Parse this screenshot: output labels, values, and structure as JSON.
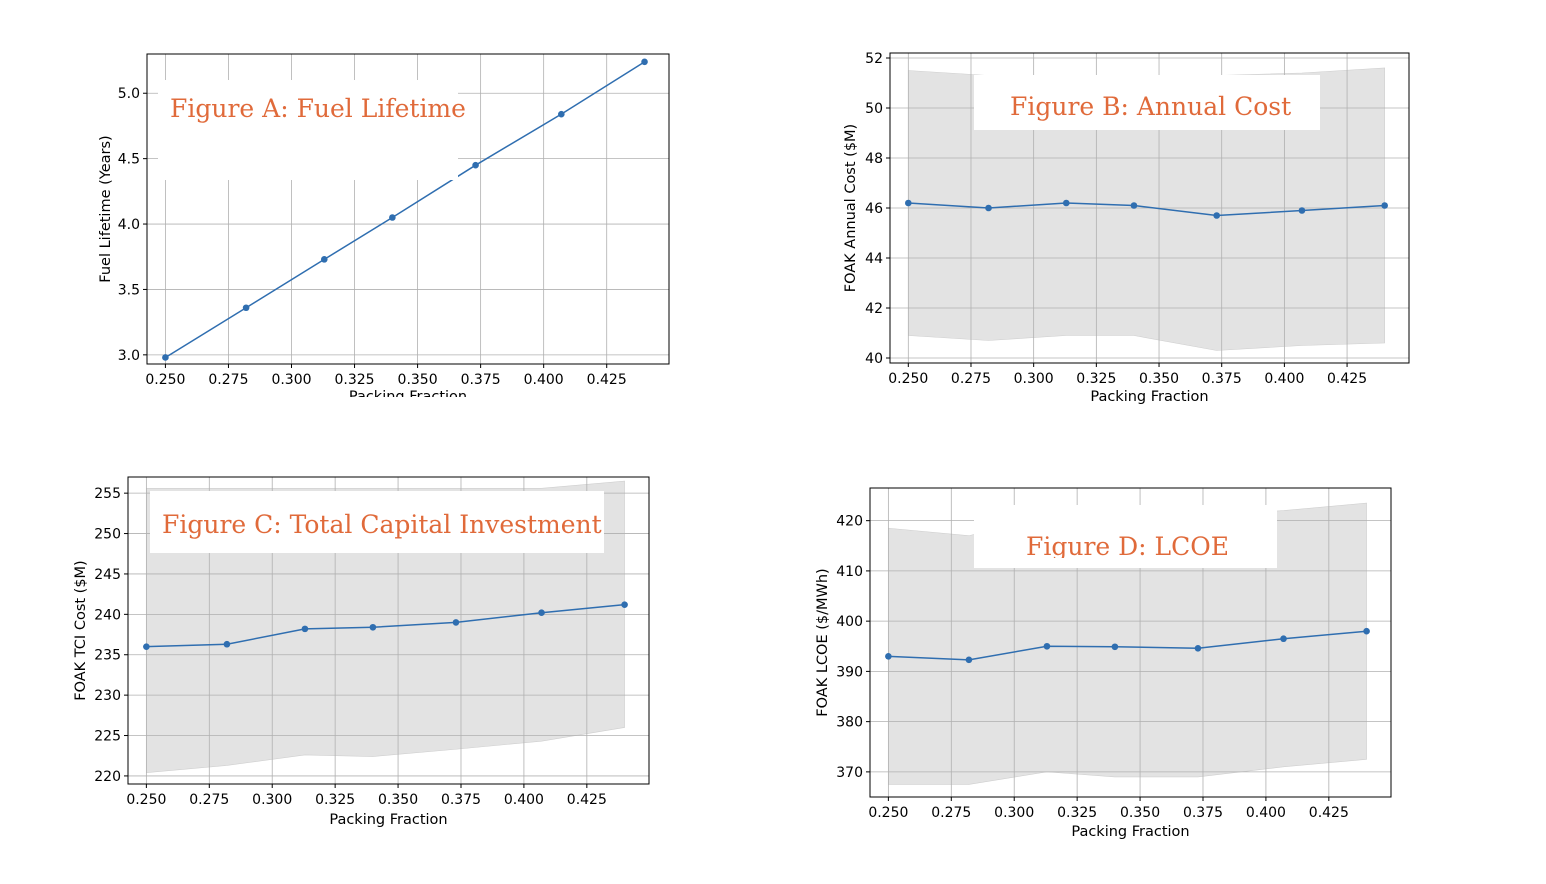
{
  "chart_data": [
    {
      "id": "A",
      "type": "line",
      "title": "Figure A: Fuel Lifetime",
      "xlabel": "Packing Fraction",
      "ylabel": "Fuel Lifetime (Years)",
      "x": [
        0.25,
        0.282,
        0.313,
        0.34,
        0.373,
        0.407,
        0.44
      ],
      "series": [
        {
          "values": [
            2.98,
            3.36,
            3.73,
            4.05,
            4.45,
            4.84,
            5.24
          ]
        }
      ],
      "xlim": [
        0.2427,
        0.4497
      ],
      "ylim": [
        2.93,
        5.3
      ],
      "xticks": [
        0.25,
        0.275,
        0.3,
        0.325,
        0.35,
        0.375,
        0.4,
        0.425
      ],
      "xtick_labels": [
        "0.250",
        "0.275",
        "0.300",
        "0.325",
        "0.350",
        "0.375",
        "0.400",
        "0.425"
      ],
      "yticks": [
        3.0,
        3.5,
        4.0,
        4.5,
        5.0
      ],
      "ytick_labels": [
        "3.0",
        "3.5",
        "4.0",
        "4.5",
        "5.0"
      ],
      "grid": true,
      "color": "#2F6EB0"
    },
    {
      "id": "B",
      "type": "line",
      "title": "Figure B: Annual Cost",
      "xlabel": "Packing Fraction",
      "ylabel": "FOAK Annual Cost ($M)",
      "x": [
        0.25,
        0.282,
        0.313,
        0.34,
        0.373,
        0.407,
        0.44
      ],
      "series": [
        {
          "values": [
            46.2,
            46.0,
            46.2,
            46.1,
            45.7,
            45.9,
            46.1
          ]
        }
      ],
      "band_upper": [
        51.5,
        51.3,
        51.3,
        51.3,
        51.3,
        51.4,
        51.6
      ],
      "band_lower": [
        40.9,
        40.7,
        40.9,
        40.9,
        40.3,
        40.5,
        40.6
      ],
      "xlim": [
        0.2427,
        0.4497
      ],
      "ylim": [
        39.8,
        52.2
      ],
      "xticks": [
        0.25,
        0.275,
        0.3,
        0.325,
        0.35,
        0.375,
        0.4,
        0.425
      ],
      "xtick_labels": [
        "0.250",
        "0.275",
        "0.300",
        "0.325",
        "0.350",
        "0.375",
        "0.400",
        "0.425"
      ],
      "yticks": [
        40,
        42,
        44,
        46,
        48,
        50,
        52
      ],
      "ytick_labels": [
        "40",
        "42",
        "44",
        "46",
        "48",
        "50",
        "52"
      ],
      "grid": true,
      "color": "#2F6EB0",
      "band_color": "#E3E3E3"
    },
    {
      "id": "C",
      "type": "line",
      "title": "Figure C: Total Capital Investment",
      "xlabel": "Packing Fraction",
      "ylabel": "FOAK TCI Cost ($M)",
      "x": [
        0.25,
        0.282,
        0.313,
        0.34,
        0.373,
        0.407,
        0.44
      ],
      "series": [
        {
          "values": [
            236.0,
            236.3,
            238.2,
            238.4,
            239.0,
            240.2,
            241.2
          ]
        }
      ],
      "band_upper": [
        255.6,
        255.6,
        255.6,
        255.6,
        255.6,
        255.6,
        256.5
      ],
      "band_lower": [
        220.4,
        221.3,
        222.6,
        222.4,
        223.3,
        224.3,
        226.0
      ],
      "xlim": [
        0.2427,
        0.4497
      ],
      "ylim": [
        219.0,
        257.0
      ],
      "xticks": [
        0.25,
        0.275,
        0.3,
        0.325,
        0.35,
        0.375,
        0.4,
        0.425
      ],
      "xtick_labels": [
        "0.250",
        "0.275",
        "0.300",
        "0.325",
        "0.350",
        "0.375",
        "0.400",
        "0.425"
      ],
      "yticks": [
        220,
        225,
        230,
        235,
        240,
        245,
        250,
        255
      ],
      "ytick_labels": [
        "220",
        "225",
        "230",
        "235",
        "240",
        "245",
        "250",
        "255"
      ],
      "grid": true,
      "color": "#2F6EB0",
      "band_color": "#E3E3E3"
    },
    {
      "id": "D",
      "type": "line",
      "title": "Figure D: LCOE",
      "xlabel": "Packing Fraction",
      "ylabel": "FOAK LCOE ($/MWh)",
      "x": [
        0.25,
        0.282,
        0.313,
        0.34,
        0.373,
        0.407,
        0.44
      ],
      "series": [
        {
          "values": [
            393.0,
            392.3,
            395.0,
            394.9,
            394.6,
            396.5,
            398.0
          ]
        }
      ],
      "band_upper": [
        418.5,
        417.0,
        421.0,
        421.0,
        421.0,
        422.0,
        423.5
      ],
      "band_lower": [
        367.5,
        367.5,
        370.0,
        369.0,
        369.0,
        371.0,
        372.5
      ],
      "xlim": [
        0.2427,
        0.4497
      ],
      "ylim": [
        365.0,
        426.5
      ],
      "xticks": [
        0.25,
        0.275,
        0.3,
        0.325,
        0.35,
        0.375,
        0.4,
        0.425
      ],
      "xtick_labels": [
        "0.250",
        "0.275",
        "0.300",
        "0.325",
        "0.350",
        "0.375",
        "0.400",
        "0.425"
      ],
      "yticks": [
        370,
        380,
        390,
        400,
        410,
        420
      ],
      "ytick_labels": [
        "370",
        "380",
        "390",
        "400",
        "410",
        "420"
      ],
      "grid": true,
      "color": "#2F6EB0",
      "band_color": "#E3E3E3"
    }
  ]
}
